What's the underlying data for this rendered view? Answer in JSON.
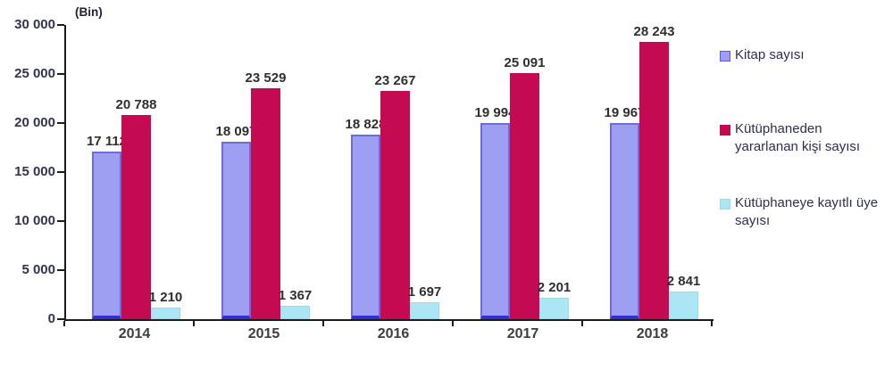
{
  "chart_data": {
    "type": "bar",
    "title": "",
    "unit_label": "(Bin)",
    "categories": [
      "2014",
      "2015",
      "2016",
      "2017",
      "2018"
    ],
    "series": [
      {
        "name": "Kitap sayısı",
        "legend_label": "Kitap sayısı",
        "color": "#9e9ef2",
        "border_color": "#5c5cd8",
        "values": [
          17112,
          18097,
          18828,
          19994,
          19967
        ],
        "value_labels": [
          "17 112",
          "18 097",
          "18 828",
          "19 994",
          "19 967"
        ]
      },
      {
        "name": "Kütüphaneden yararlanan kişi sayısı",
        "legend_label": "Kütüphaneden\nyararlanan kişi sayısı",
        "color": "#c40a50",
        "border_color": "#c40a50",
        "values": [
          20788,
          23529,
          23267,
          25091,
          28243
        ],
        "value_labels": [
          "20 788",
          "23 529",
          "23 267",
          "25 091",
          "28 243"
        ]
      },
      {
        "name": "Kütüphaneye kayıtlı üye sayısı",
        "legend_label": "Kütüphaneye kayıtlı üye\nsayısı",
        "color": "#ace6f4",
        "border_color": "#96dcec",
        "values": [
          1210,
          1367,
          1697,
          2201,
          2841
        ],
        "value_labels": [
          "1 210",
          "1 367",
          "1 697",
          "2 201",
          "2 841"
        ]
      }
    ],
    "y_axis": {
      "min": 0,
      "max": 30000,
      "step": 5000,
      "tick_labels": [
        "0",
        "5 000",
        "10 000",
        "15 000",
        "20 000",
        "25 000",
        "30 000"
      ]
    },
    "legend_position": "right",
    "grid": false
  }
}
